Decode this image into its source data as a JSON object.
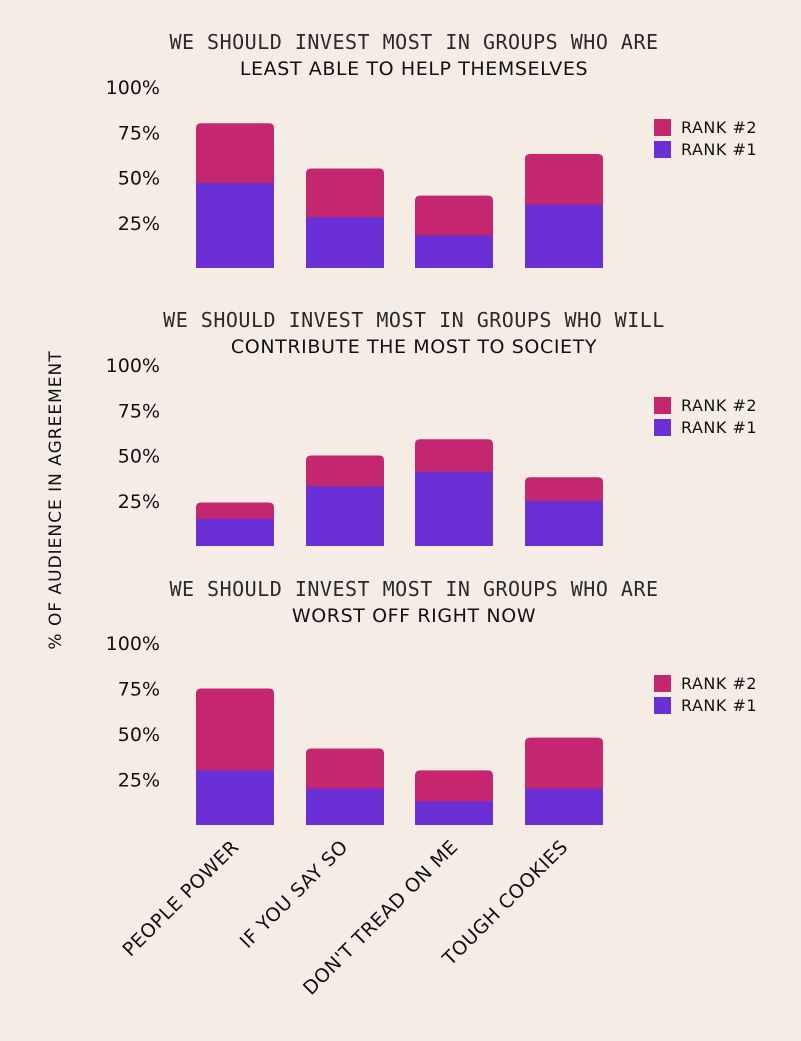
{
  "colors": {
    "rank1": "#6b2fd6",
    "rank2": "#c4266f",
    "background": "#f5ece6"
  },
  "ylabel": "% OF AUDIENCE IN AGREEMENT",
  "categories": [
    "PEOPLE POWER",
    "IF YOU SAY SO",
    "DON'T TREAD ON ME",
    "TOUGH COOKIES"
  ],
  "legend": {
    "rank2": "RANK #2",
    "rank1": "RANK #1"
  },
  "y_ticks": [
    "100%",
    "75%",
    "50%",
    "25%"
  ],
  "chart_data": [
    {
      "type": "bar",
      "stacked": true,
      "title_line1": "WE SHOULD INVEST MOST IN GROUPS WHO ARE",
      "title_line2": "LEAST ABLE TO HELP THEMSELVES",
      "categories": [
        "PEOPLE POWER",
        "IF YOU SAY SO",
        "DON'T TREAD ON ME",
        "TOUGH COOKIES"
      ],
      "ylim": [
        0,
        100
      ],
      "series": [
        {
          "name": "RANK #1",
          "values": [
            47,
            28,
            18,
            35
          ]
        },
        {
          "name": "RANK #2",
          "values": [
            33,
            27,
            22,
            28
          ]
        }
      ]
    },
    {
      "type": "bar",
      "stacked": true,
      "title_line1": "WE SHOULD INVEST MOST IN GROUPS WHO WILL",
      "title_line2": "CONTRIBUTE THE MOST TO SOCIETY",
      "categories": [
        "PEOPLE POWER",
        "IF YOU SAY SO",
        "DON'T TREAD ON ME",
        "TOUGH COOKIES"
      ],
      "ylim": [
        0,
        100
      ],
      "series": [
        {
          "name": "RANK #1",
          "values": [
            15,
            33,
            41,
            25
          ]
        },
        {
          "name": "RANK #2",
          "values": [
            9,
            17,
            18,
            13
          ]
        }
      ]
    },
    {
      "type": "bar",
      "stacked": true,
      "title_line1": "WE SHOULD INVEST MOST IN GROUPS WHO ARE",
      "title_line2": "WORST OFF RIGHT NOW",
      "categories": [
        "PEOPLE POWER",
        "IF YOU SAY SO",
        "DON'T TREAD ON ME",
        "TOUGH COOKIES"
      ],
      "ylim": [
        0,
        100
      ],
      "series": [
        {
          "name": "RANK #1",
          "values": [
            30,
            20,
            13,
            20
          ]
        },
        {
          "name": "RANK #2",
          "values": [
            45,
            22,
            17,
            28
          ]
        }
      ]
    }
  ]
}
